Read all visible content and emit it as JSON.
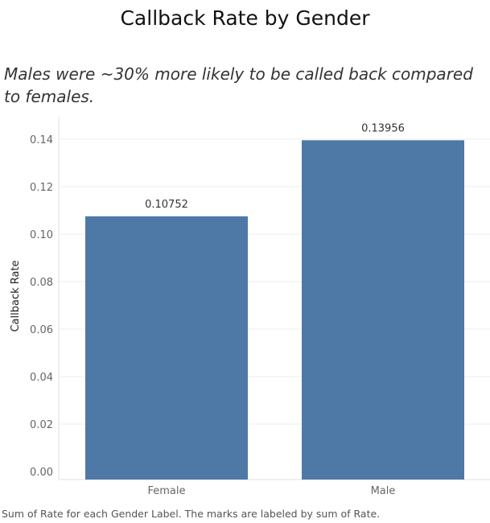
{
  "chart_data": {
    "type": "bar",
    "title": "Callback Rate by Gender",
    "subtitle": "Males were ~30% more likely to be called back compared to females.",
    "categories": [
      "Female",
      "Male"
    ],
    "values": [
      0.10752,
      0.13956
    ],
    "data_labels": [
      "0.10752",
      "0.13956"
    ],
    "xlabel": "",
    "ylabel": "Callback Rate",
    "ylim": [
      0,
      0.15
    ],
    "yticks": [
      0,
      0.02,
      0.04,
      0.06,
      0.08,
      0.1,
      0.12,
      0.14
    ],
    "ytick_labels": [
      "0.00",
      "0.02",
      "0.04",
      "0.06",
      "0.08",
      "0.10",
      "0.12",
      "0.14"
    ],
    "grid": true,
    "bar_color": "#4e79a7",
    "footer": "Sum of Rate for each Gender Label.  The marks are labeled by sum of Rate."
  }
}
